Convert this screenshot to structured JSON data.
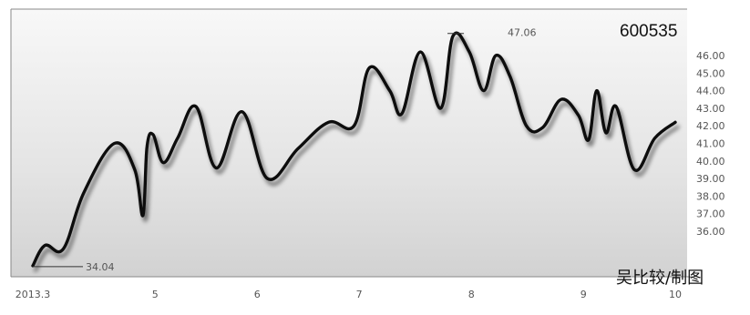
{
  "stock_code": "600535",
  "credit": "吴比较/制图",
  "chart_data": {
    "type": "line",
    "title": "",
    "xlabel": "",
    "ylabel": "",
    "x_ticks": [
      {
        "label": "2013.3",
        "value": 0
      },
      {
        "label": "5",
        "value": 1.2
      },
      {
        "label": "6",
        "value": 2.2
      },
      {
        "label": "7",
        "value": 3.2
      },
      {
        "label": "8",
        "value": 4.3
      },
      {
        "label": "9",
        "value": 5.4
      },
      {
        "label": "10",
        "value": 6.3
      }
    ],
    "y_ticks": [
      36,
      37,
      38,
      39,
      40,
      41,
      42,
      43,
      44,
      45,
      46
    ],
    "y_tick_labels": [
      "36.00",
      "37.00",
      "38.00",
      "39.00",
      "40.00",
      "41.00",
      "42.00",
      "43.00",
      "44.00",
      "45.00",
      "46.00"
    ],
    "ylim": [
      34.5,
      47.5
    ],
    "xlim": [
      0,
      6.3
    ],
    "grid": false,
    "series": [
      {
        "x": [
          0.0,
          0.12,
          0.3,
          0.5,
          0.8,
          1.0,
          1.08,
          1.12,
          1.18,
          1.28,
          1.42,
          1.6,
          1.8,
          2.05,
          2.3,
          2.6,
          2.9,
          3.15,
          3.3,
          3.5,
          3.62,
          3.8,
          4.0,
          4.12,
          4.28,
          4.42,
          4.54,
          4.68,
          4.84,
          5.0,
          5.18,
          5.35,
          5.45,
          5.53,
          5.62,
          5.72,
          5.9,
          6.1,
          6.3
        ],
        "y": [
          34.04,
          35.2,
          35.0,
          38.2,
          41.0,
          39.5,
          36.9,
          40.8,
          41.5,
          39.9,
          41.3,
          43.1,
          39.6,
          42.8,
          39.0,
          40.7,
          42.2,
          42.0,
          45.3,
          44.0,
          42.7,
          46.2,
          43.0,
          47.1,
          46.2,
          44.0,
          46.0,
          44.8,
          42.0,
          41.9,
          43.5,
          42.6,
          41.2,
          44.0,
          41.6,
          43.1,
          39.5,
          41.3,
          42.2
        ]
      }
    ],
    "annotations": [
      {
        "label": "34.04",
        "type": "min"
      },
      {
        "label": "47.06",
        "type": "max"
      }
    ]
  }
}
